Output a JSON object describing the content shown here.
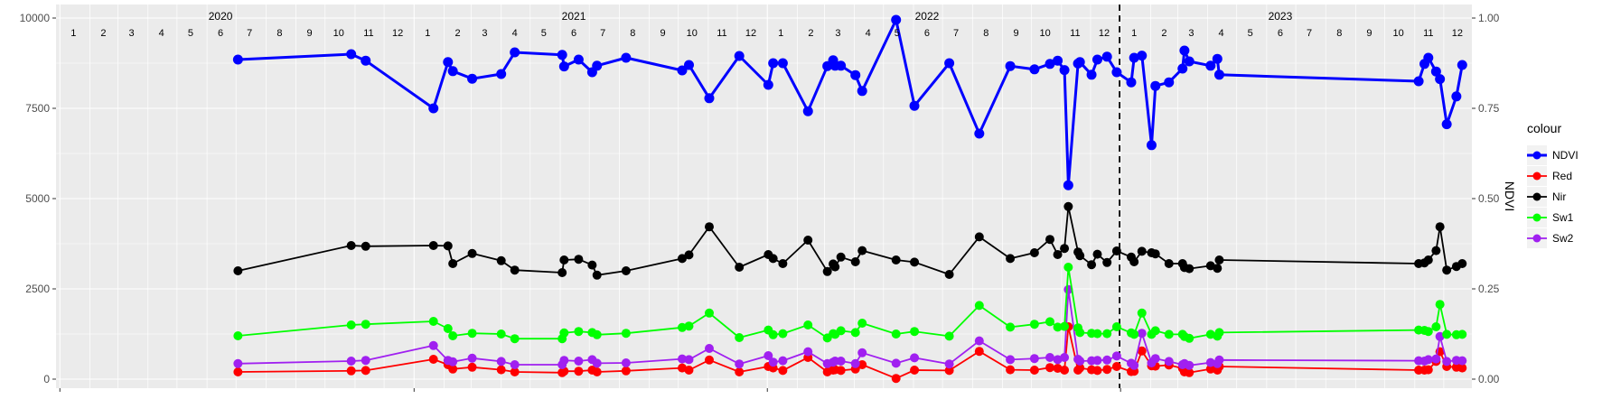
{
  "chart_data": {
    "type": "line",
    "title": "",
    "xlabel": "",
    "ylabel": "",
    "y2label": "NDVI",
    "ylim": [
      0,
      10000
    ],
    "y2lim": [
      0,
      1
    ],
    "y_ticks": [
      "0",
      "2500",
      "5000",
      "7500",
      "10000"
    ],
    "y2_ticks": [
      "0.00",
      "0.25",
      "0.50",
      "0.75",
      "1.00"
    ],
    "xlim": [
      "2019-12-28",
      "2023-12-30"
    ],
    "grid": true,
    "legend": {
      "title": "colour",
      "position": "right"
    },
    "vline": {
      "x": "2022-12-31",
      "style": "dashed"
    },
    "year_labels": [
      {
        "label": "2020",
        "date": "2020-06-15"
      },
      {
        "label": "2021",
        "date": "2021-06-15"
      },
      {
        "label": "2022",
        "date": "2022-06-15"
      },
      {
        "label": "2023",
        "date": "2023-06-15"
      }
    ],
    "month_labels": [
      "1",
      "2",
      "3",
      "4",
      "5",
      "6",
      "7",
      "8",
      "9",
      "10",
      "11",
      "12"
    ],
    "x_dates": [
      "2020-07-03",
      "2020-10-28",
      "2020-11-12",
      "2021-01-21",
      "2021-02-05",
      "2021-02-10",
      "2021-03-02",
      "2021-04-01",
      "2021-04-15",
      "2021-06-03",
      "2021-06-05",
      "2021-06-20",
      "2021-07-04",
      "2021-07-09",
      "2021-08-08",
      "2021-10-05",
      "2021-10-12",
      "2021-11-02",
      "2021-12-03",
      "2022-01-02",
      "2022-01-07",
      "2022-01-17",
      "2022-02-12",
      "2022-03-04",
      "2022-03-10",
      "2022-03-12",
      "2022-03-18",
      "2022-04-02",
      "2022-04-09",
      "2022-05-14",
      "2022-06-02",
      "2022-07-08",
      "2022-08-08",
      "2022-09-09",
      "2022-10-04",
      "2022-10-20",
      "2022-10-28",
      "2022-11-04",
      "2022-11-08",
      "2022-11-18",
      "2022-11-20",
      "2022-12-02",
      "2022-12-08",
      "2022-12-18",
      "2022-12-28",
      "2023-01-12",
      "2023-01-15",
      "2023-01-23",
      "2023-02-02",
      "2023-02-06",
      "2023-02-20",
      "2023-03-06",
      "2023-03-08",
      "2023-03-13",
      "2023-04-04",
      "2023-04-11",
      "2023-04-13",
      "2023-11-05",
      "2023-11-11",
      "2023-11-15",
      "2023-11-23",
      "2023-11-27",
      "2023-12-04",
      "2023-12-14",
      "2023-12-20"
    ],
    "series": [
      {
        "name": "NDVI",
        "axis": "right",
        "color": "#0000FF",
        "line_width": 3,
        "point_radius": 5.5,
        "values": [
          0.885,
          0.9,
          0.882,
          0.75,
          0.878,
          0.853,
          0.832,
          0.845,
          0.905,
          0.898,
          0.866,
          0.885,
          0.85,
          0.868,
          0.89,
          0.855,
          0.87,
          0.778,
          0.895,
          0.815,
          0.875,
          0.875,
          0.742,
          0.867,
          0.883,
          0.868,
          0.868,
          0.842,
          0.798,
          0.995,
          0.757,
          0.875,
          0.68,
          0.867,
          0.858,
          0.873,
          0.882,
          0.856,
          0.537,
          0.874,
          0.878,
          0.843,
          0.885,
          0.893,
          0.85,
          0.822,
          0.89,
          0.896,
          0.648,
          0.812,
          0.822,
          0.86,
          0.91,
          0.88,
          0.868,
          0.887,
          0.843,
          0.825,
          0.873,
          0.89,
          0.852,
          0.831,
          0.706,
          0.783,
          0.87
        ]
      },
      {
        "name": "Nir",
        "axis": "left",
        "color": "#000000",
        "line_width": 1.8,
        "point_radius": 5,
        "values": [
          3000,
          3700,
          3680,
          3700,
          3690,
          3200,
          3480,
          3280,
          3020,
          2950,
          3300,
          3320,
          3160,
          2880,
          3000,
          3340,
          3440,
          4220,
          3100,
          3450,
          3340,
          3200,
          3850,
          2980,
          3190,
          3110,
          3380,
          3250,
          3560,
          3300,
          3240,
          2900,
          3940,
          3340,
          3500,
          3870,
          3450,
          3620,
          4780,
          3520,
          3420,
          3170,
          3460,
          3230,
          3550,
          3380,
          3250,
          3540,
          3500,
          3470,
          3200,
          3200,
          3090,
          3060,
          3140,
          3070,
          3300,
          3200,
          3220,
          3300,
          3560,
          4220,
          3020,
          3120,
          3200
        ]
      },
      {
        "name": "Sw1",
        "axis": "left",
        "color": "#00FF00",
        "line_width": 1.8,
        "point_radius": 5,
        "values": [
          1200,
          1500,
          1520,
          1600,
          1400,
          1200,
          1270,
          1250,
          1120,
          1120,
          1280,
          1320,
          1290,
          1230,
          1270,
          1430,
          1470,
          1830,
          1150,
          1360,
          1230,
          1260,
          1500,
          1140,
          1260,
          1240,
          1340,
          1290,
          1550,
          1250,
          1320,
          1190,
          2040,
          1440,
          1520,
          1590,
          1440,
          1460,
          3100,
          1420,
          1290,
          1270,
          1260,
          1260,
          1450,
          1280,
          1240,
          1830,
          1240,
          1340,
          1240,
          1240,
          1180,
          1130,
          1240,
          1190,
          1290,
          1360,
          1350,
          1320,
          1450,
          2070,
          1240,
          1230,
          1240
        ]
      },
      {
        "name": "Sw2",
        "axis": "left",
        "color": "#A020F0",
        "line_width": 1.8,
        "point_radius": 5,
        "values": [
          430,
          500,
          520,
          930,
          520,
          480,
          580,
          490,
          400,
          400,
          520,
          500,
          540,
          440,
          450,
          560,
          540,
          850,
          420,
          650,
          470,
          510,
          760,
          430,
          470,
          500,
          500,
          430,
          730,
          440,
          590,
          420,
          1060,
          540,
          570,
          600,
          540,
          600,
          2480,
          550,
          500,
          510,
          520,
          530,
          640,
          440,
          380,
          1270,
          450,
          570,
          490,
          400,
          430,
          380,
          460,
          430,
          530,
          510,
          500,
          540,
          560,
          1180,
          490,
          520,
          510
        ]
      },
      {
        "name": "Red",
        "axis": "left",
        "color": "#FF0000",
        "line_width": 1.8,
        "point_radius": 5,
        "values": [
          200,
          230,
          240,
          550,
          400,
          280,
          330,
          260,
          200,
          180,
          220,
          220,
          250,
          200,
          230,
          310,
          250,
          530,
          200,
          350,
          310,
          240,
          600,
          200,
          250,
          260,
          240,
          280,
          400,
          20,
          250,
          240,
          770,
          260,
          250,
          320,
          300,
          250,
          1450,
          250,
          310,
          260,
          240,
          270,
          350,
          210,
          220,
          780,
          370,
          360,
          390,
          300,
          200,
          180,
          280,
          250,
          350,
          250,
          250,
          260,
          490,
          760,
          350,
          330,
          310
        ]
      }
    ],
    "legend_order": [
      "NDVI",
      "Red",
      "Nir",
      "Sw1",
      "Sw2"
    ]
  }
}
